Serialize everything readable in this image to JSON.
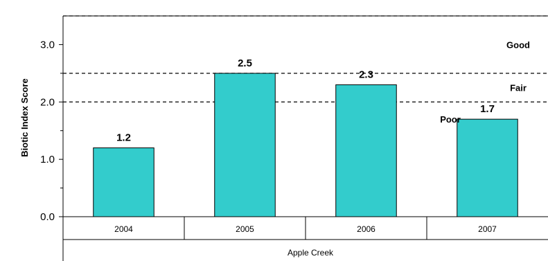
{
  "chart_data": {
    "type": "bar",
    "categories": [
      "2004",
      "2005",
      "2006",
      "2007"
    ],
    "values": [
      1.2,
      2.5,
      2.3,
      1.7
    ],
    "data_labels": [
      "1.2",
      "2.5",
      "2.3",
      "1.7"
    ],
    "group_label": "Apple Creek",
    "ylabel": "Biotic Index Score",
    "ylim": [
      0,
      3.5
    ],
    "yticks": [
      0,
      1,
      2,
      3
    ],
    "ytick_labels": [
      "0.0",
      "1.0",
      "2.0",
      "3.0"
    ],
    "thresholds": [
      {
        "value": 2.0,
        "style": "dashed"
      },
      {
        "value": 2.5,
        "style": "dashed"
      },
      {
        "value": 3.5,
        "style": "dashed"
      }
    ],
    "zones": [
      {
        "label": "Good",
        "y": 3.0
      },
      {
        "label": "Fair",
        "y": 2.25
      },
      {
        "label": "Poor",
        "y": 1.7
      }
    ],
    "bar_color": "#33CCCC",
    "grid": false
  }
}
